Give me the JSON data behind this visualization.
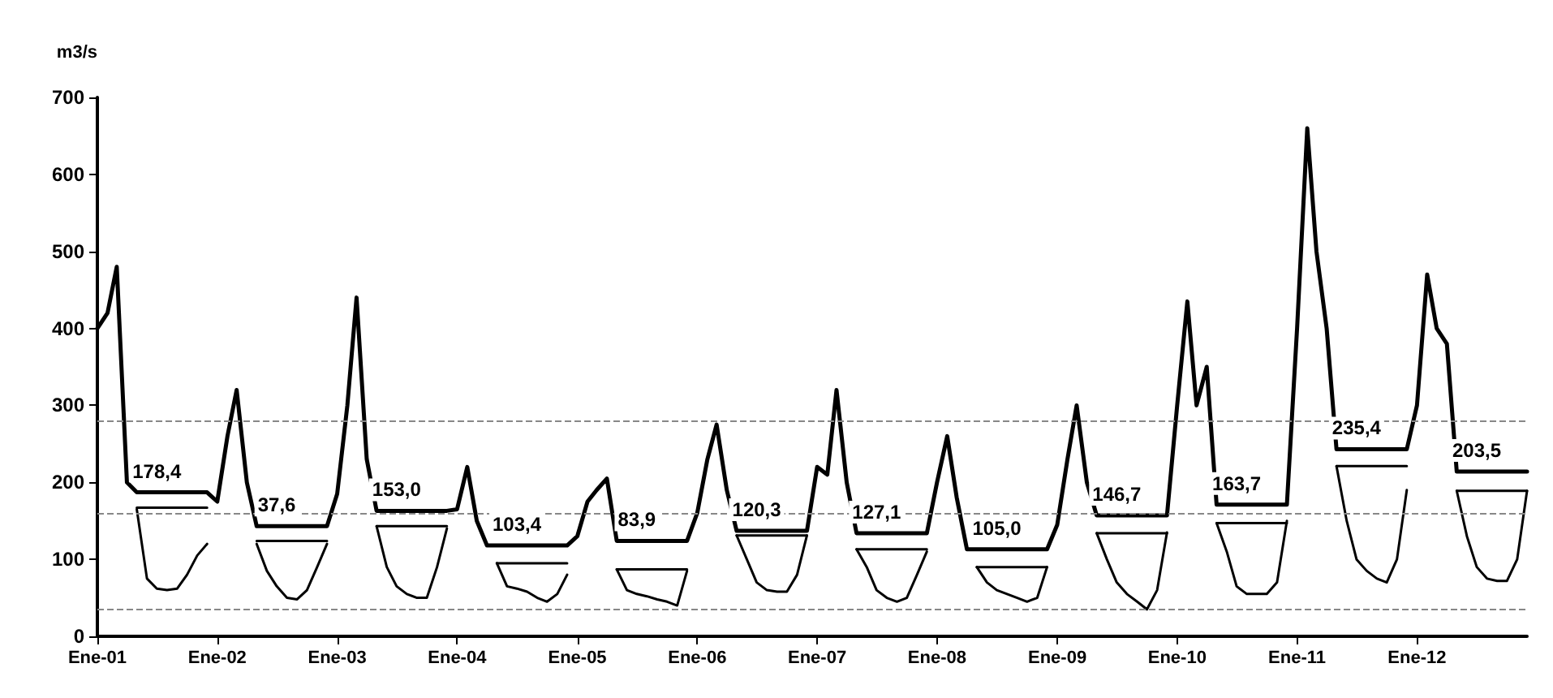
{
  "chart_data": {
    "type": "line",
    "ylabel": "m3/s",
    "x": [
      "2001-01",
      "2001-02",
      "2001-03",
      "2001-04",
      "2001-05",
      "2001-06",
      "2001-07",
      "2001-08",
      "2001-09",
      "2001-10",
      "2001-11",
      "2001-12",
      "2002-01",
      "2002-02",
      "2002-03",
      "2002-04",
      "2002-05",
      "2002-06",
      "2002-07",
      "2002-08",
      "2002-09",
      "2002-10",
      "2002-11",
      "2002-12",
      "2003-01",
      "2003-02",
      "2003-03",
      "2003-04",
      "2003-05",
      "2003-06",
      "2003-07",
      "2003-08",
      "2003-09",
      "2003-10",
      "2003-11",
      "2003-12",
      "2004-01",
      "2004-02",
      "2004-03",
      "2004-04",
      "2004-05",
      "2004-06",
      "2004-07",
      "2004-08",
      "2004-09",
      "2004-10",
      "2004-11",
      "2004-12",
      "2005-01",
      "2005-02",
      "2005-03",
      "2005-04",
      "2005-05",
      "2005-06",
      "2005-07",
      "2005-08",
      "2005-09",
      "2005-10",
      "2005-11",
      "2005-12",
      "2006-01",
      "2006-02",
      "2006-03",
      "2006-04",
      "2006-05",
      "2006-06",
      "2006-07",
      "2006-08",
      "2006-09",
      "2006-10",
      "2006-11",
      "2006-12",
      "2007-01",
      "2007-02",
      "2007-03",
      "2007-04",
      "2007-05",
      "2007-06",
      "2007-07",
      "2007-08",
      "2007-09",
      "2007-10",
      "2007-11",
      "2007-12",
      "2008-01",
      "2008-02",
      "2008-03",
      "2008-04",
      "2008-05",
      "2008-06",
      "2008-07",
      "2008-08",
      "2008-09",
      "2008-10",
      "2008-11",
      "2008-12",
      "2009-01",
      "2009-02",
      "2009-03",
      "2009-04",
      "2009-05",
      "2009-06",
      "2009-07",
      "2009-08",
      "2009-09",
      "2009-10",
      "2009-11",
      "2009-12",
      "2010-01",
      "2010-02",
      "2010-03",
      "2010-04",
      "2010-05",
      "2010-06",
      "2010-07",
      "2010-08",
      "2010-09",
      "2010-10",
      "2010-11",
      "2010-12",
      "2011-01",
      "2011-02",
      "2011-03",
      "2011-04",
      "2011-05",
      "2011-06",
      "2011-07",
      "2011-08",
      "2011-09",
      "2011-10",
      "2011-11",
      "2011-12",
      "2012-01",
      "2012-02",
      "2012-03",
      "2012-04",
      "2012-05",
      "2012-06",
      "2012-07",
      "2012-08",
      "2012-09",
      "2012-10",
      "2012-11",
      "2012-12"
    ],
    "series": [
      {
        "color": "#000000",
        "values": [
          400,
          420,
          480,
          200,
          187,
          187,
          187,
          187,
          187,
          187,
          187,
          187,
          175,
          260,
          320,
          200,
          143,
          143,
          143,
          143,
          143,
          143,
          143,
          143,
          185,
          300,
          440,
          230,
          163,
          163,
          163,
          163,
          163,
          163,
          163,
          163,
          165,
          220,
          150,
          118,
          118,
          118,
          118,
          118,
          118,
          118,
          118,
          118,
          130,
          175,
          190,
          205,
          124,
          124,
          124,
          124,
          124,
          124,
          124,
          124,
          160,
          230,
          275,
          190,
          137,
          137,
          137,
          137,
          137,
          137,
          137,
          137,
          220,
          210,
          320,
          200,
          134,
          134,
          134,
          134,
          134,
          134,
          134,
          134,
          200,
          260,
          180,
          113,
          113,
          113,
          113,
          113,
          113,
          113,
          113,
          113,
          145,
          230,
          300,
          200,
          157,
          157,
          157,
          157,
          157,
          157,
          157,
          157,
          300,
          435,
          300,
          350,
          171,
          171,
          171,
          171,
          171,
          171,
          171,
          171,
          400,
          660,
          500,
          400,
          243,
          243,
          243,
          243,
          243,
          243,
          243,
          243,
          300,
          470,
          400,
          380,
          214,
          214,
          214,
          214,
          214,
          214,
          214,
          214
        ]
      },
      {
        "color": "#000000",
        "values": [
          null,
          null,
          null,
          null,
          165,
          75,
          62,
          60,
          62,
          80,
          105,
          120,
          null,
          null,
          null,
          null,
          120,
          85,
          65,
          50,
          48,
          60,
          90,
          120,
          null,
          null,
          null,
          null,
          143,
          90,
          65,
          55,
          50,
          50,
          90,
          140,
          null,
          null,
          null,
          null,
          95,
          65,
          62,
          58,
          50,
          45,
          55,
          80,
          null,
          null,
          null,
          null,
          87,
          60,
          55,
          52,
          48,
          45,
          40,
          85,
          null,
          null,
          null,
          null,
          131,
          100,
          70,
          60,
          58,
          58,
          80,
          131,
          null,
          null,
          null,
          null,
          113,
          90,
          60,
          50,
          45,
          50,
          80,
          110,
          null,
          null,
          null,
          null,
          90,
          70,
          60,
          55,
          50,
          45,
          50,
          90,
          null,
          null,
          null,
          null,
          134,
          100,
          70,
          55,
          45,
          35,
          60,
          135,
          null,
          null,
          null,
          null,
          147,
          110,
          65,
          55,
          55,
          55,
          70,
          150,
          null,
          null,
          null,
          null,
          221,
          150,
          100,
          85,
          75,
          70,
          100,
          190,
          null,
          null,
          null,
          null,
          189,
          130,
          90,
          75,
          72,
          72,
          100,
          189
        ]
      },
      {
        "color": "#000000",
        "values": [
          null,
          null,
          null,
          null,
          167,
          167,
          167,
          167,
          167,
          167,
          167,
          167,
          null,
          null,
          null,
          null,
          124,
          124,
          124,
          124,
          124,
          124,
          124,
          124,
          null,
          null,
          null,
          null,
          143,
          143,
          143,
          143,
          143,
          143,
          143,
          143,
          null,
          null,
          null,
          null,
          95,
          95,
          95,
          95,
          95,
          95,
          95,
          95,
          null,
          null,
          null,
          null,
          87,
          87,
          87,
          87,
          87,
          87,
          87,
          87,
          null,
          null,
          null,
          null,
          131,
          131,
          131,
          131,
          131,
          131,
          131,
          131,
          null,
          null,
          null,
          null,
          113,
          113,
          113,
          113,
          113,
          113,
          113,
          113,
          null,
          null,
          null,
          null,
          90,
          90,
          90,
          90,
          90,
          90,
          90,
          90,
          null,
          null,
          null,
          null,
          134,
          134,
          134,
          134,
          134,
          134,
          134,
          134,
          null,
          null,
          null,
          null,
          147,
          147,
          147,
          147,
          147,
          147,
          147,
          147,
          null,
          null,
          null,
          null,
          221,
          221,
          221,
          221,
          221,
          221,
          221,
          221,
          null,
          null,
          null,
          null,
          189,
          189,
          189,
          189,
          189,
          189,
          189,
          189
        ]
      }
    ],
    "xlim": [
      "2001-01",
      "2012-12"
    ],
    "xticks": [
      {
        "value": "2001-01",
        "label": "Ene-01"
      },
      {
        "value": "2002-01",
        "label": "Ene-02"
      },
      {
        "value": "2003-01",
        "label": "Ene-03"
      },
      {
        "value": "2004-01",
        "label": "Ene-04"
      },
      {
        "value": "2005-01",
        "label": "Ene-05"
      },
      {
        "value": "2006-01",
        "label": "Ene-06"
      },
      {
        "value": "2007-01",
        "label": "Ene-07"
      },
      {
        "value": "2008-01",
        "label": "Ene-08"
      },
      {
        "value": "2009-01",
        "label": "Ene-09"
      },
      {
        "value": "2010-01",
        "label": "Ene-10"
      },
      {
        "value": "2011-01",
        "label": "Ene-11"
      },
      {
        "value": "2012-01",
        "label": "Ene-12"
      }
    ],
    "ylim": [
      0,
      700
    ],
    "yticks": [
      0,
      100,
      200,
      300,
      400,
      500,
      600,
      700
    ],
    "ref_lines": [
      {
        "axis": "y",
        "value": 35,
        "color": "#888888",
        "line_style": "dashed"
      },
      {
        "axis": "y",
        "value": 160,
        "color": "#888888",
        "line_style": "dashed"
      },
      {
        "axis": "y",
        "value": 280,
        "color": "#888888",
        "line_style": "dashed"
      }
    ],
    "annotations": [
      {
        "text": "178,4",
        "x": "2001-07",
        "y": 187
      },
      {
        "text": "37,6",
        "x": "2002-07",
        "y": 143
      },
      {
        "text": "153,0",
        "x": "2003-07",
        "y": 163
      },
      {
        "text": "103,4",
        "x": "2004-07",
        "y": 118
      },
      {
        "text": "83,9",
        "x": "2005-07",
        "y": 124
      },
      {
        "text": "120,3",
        "x": "2006-07",
        "y": 137
      },
      {
        "text": "127,1",
        "x": "2007-07",
        "y": 134
      },
      {
        "text": "105,0",
        "x": "2008-07",
        "y": 113
      },
      {
        "text": "146,7",
        "x": "2009-07",
        "y": 157
      },
      {
        "text": "163,7",
        "x": "2010-07",
        "y": 171
      },
      {
        "text": "235,4",
        "x": "2011-07",
        "y": 243
      },
      {
        "text": "203,5",
        "x": "2012-07",
        "y": 214
      }
    ],
    "grid": false,
    "marker": "none",
    "line_style": "solid"
  }
}
